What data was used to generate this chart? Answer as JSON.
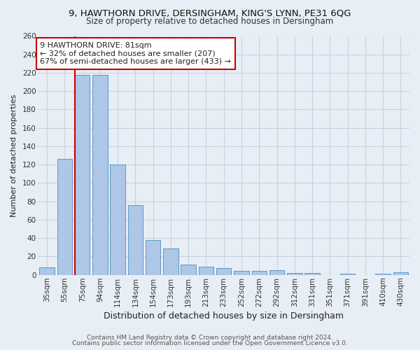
{
  "title": "9, HAWTHORN DRIVE, DERSINGHAM, KING'S LYNN, PE31 6QG",
  "subtitle": "Size of property relative to detached houses in Dersingham",
  "xlabel": "Distribution of detached houses by size in Dersingham",
  "ylabel": "Number of detached properties",
  "categories": [
    "35sqm",
    "55sqm",
    "75sqm",
    "94sqm",
    "114sqm",
    "134sqm",
    "154sqm",
    "173sqm",
    "193sqm",
    "213sqm",
    "233sqm",
    "252sqm",
    "272sqm",
    "292sqm",
    "312sqm",
    "331sqm",
    "351sqm",
    "371sqm",
    "391sqm",
    "410sqm",
    "430sqm"
  ],
  "values": [
    8,
    126,
    218,
    218,
    120,
    76,
    38,
    29,
    11,
    9,
    7,
    4,
    4,
    5,
    2,
    2,
    0,
    1,
    0,
    1,
    3
  ],
  "bar_color": "#aec6e8",
  "bar_edge_color": "#5a9ac5",
  "bg_color": "#e8eef5",
  "grid_color": "#c5d3e0",
  "property_line_color": "#cc0000",
  "annotation_line1": "9 HAWTHORN DRIVE: 81sqm",
  "annotation_line2": "← 32% of detached houses are smaller (207)",
  "annotation_line3": "67% of semi-detached houses are larger (433) →",
  "annotation_box_color": "#ffffff",
  "annotation_box_edge": "#cc0000",
  "ylim": [
    0,
    260
  ],
  "yticks": [
    0,
    20,
    40,
    60,
    80,
    100,
    120,
    140,
    160,
    180,
    200,
    220,
    240,
    260
  ],
  "footer1": "Contains HM Land Registry data © Crown copyright and database right 2024.",
  "footer2": "Contains public sector information licensed under the Open Government Licence v3.0.",
  "title_fontsize": 9.5,
  "subtitle_fontsize": 8.5,
  "xlabel_fontsize": 9,
  "ylabel_fontsize": 8,
  "tick_fontsize": 7.5,
  "annotation_fontsize": 8,
  "footer_fontsize": 6.5
}
